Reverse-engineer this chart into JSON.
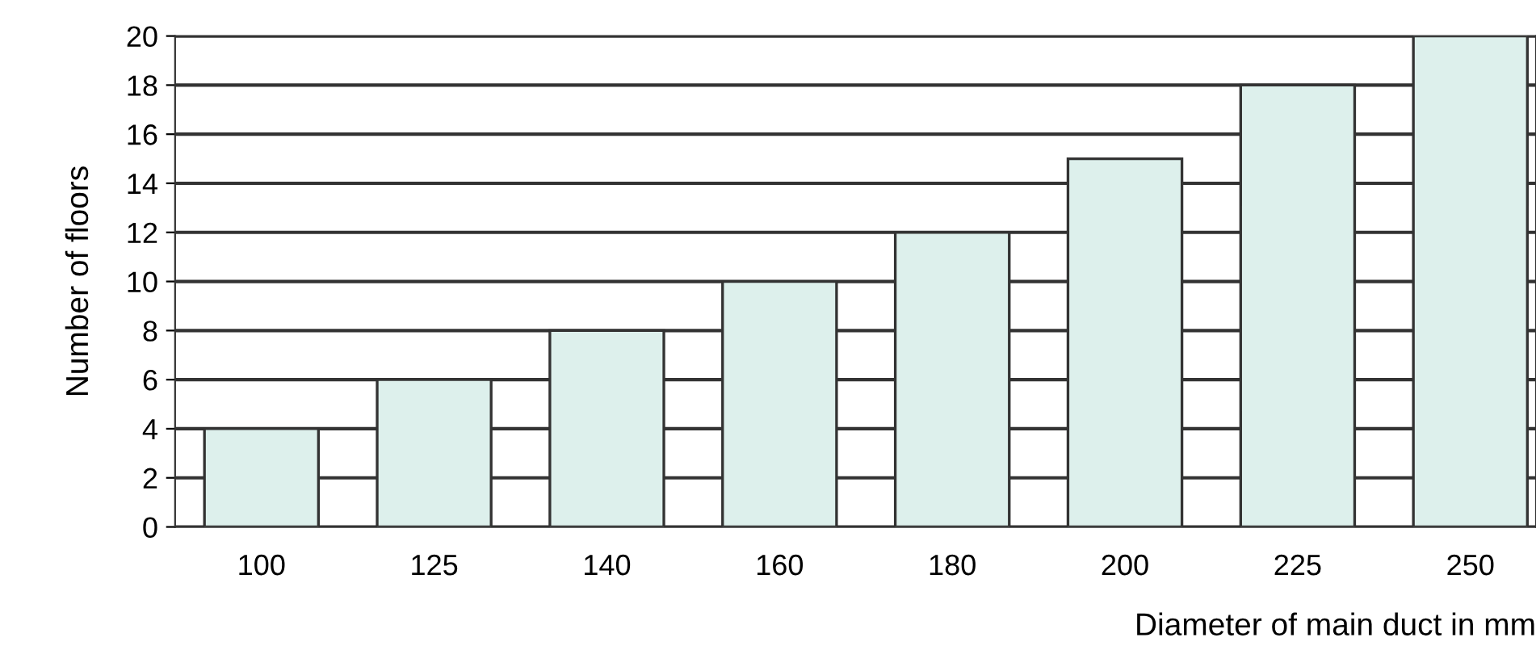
{
  "chart_data": {
    "type": "bar",
    "xlabel": "Diameter of main duct in mm",
    "ylabel": "Number of floors",
    "categories": [
      "100",
      "125",
      "140",
      "160",
      "180",
      "200",
      "225",
      "250"
    ],
    "values": [
      4,
      6,
      8,
      10,
      12,
      15,
      18,
      20
    ],
    "color": "#ddf0ec",
    "ylim": [
      0,
      20
    ],
    "yticks": [
      0,
      2,
      4,
      6,
      8,
      10,
      12,
      14,
      16,
      18,
      20
    ],
    "grid": "y"
  }
}
